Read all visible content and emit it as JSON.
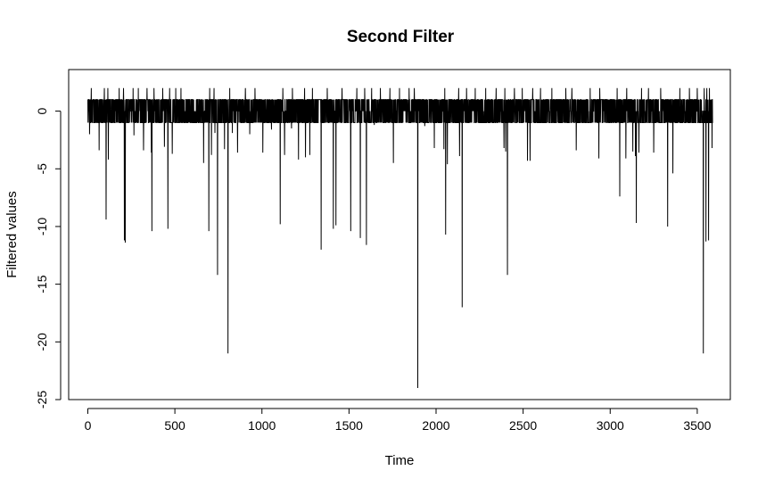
{
  "chart_data": {
    "type": "line",
    "title": "Second Filter",
    "xlabel": "Time",
    "ylabel": "Filtered values",
    "xlim": [
      -110,
      3690
    ],
    "ylim": [
      -25,
      3.6
    ],
    "x_ticks": [
      0,
      500,
      1000,
      1500,
      2000,
      2500,
      3000,
      3500
    ],
    "y_ticks": [
      0,
      -5,
      -10,
      -15,
      -20,
      -25
    ],
    "grid": false,
    "legend": "none",
    "series": [
      {
        "noise_levels": [
          -1,
          0,
          1
        ],
        "x_range": [
          0,
          3590
        ],
        "max_upward_spike": {
          "x": 1340,
          "y": 3
        },
        "max_upward_spike_level": 2,
        "upward_spikes_x": [
          20,
          95,
          115,
          180,
          205,
          260,
          290,
          340,
          380,
          430,
          470,
          505,
          535,
          665,
          700,
          725,
          785,
          815,
          860,
          905,
          960,
          1055,
          1120,
          1175,
          1245,
          1290,
          1375,
          1410,
          1460,
          1545,
          1590,
          1630,
          1680,
          1735,
          1790,
          1845,
          1875,
          1935,
          1990,
          2050,
          2130,
          2175,
          2225,
          2285,
          2345,
          2395,
          2450,
          2495,
          2555,
          2600,
          2665,
          2745,
          2780,
          2885,
          2940,
          3040,
          3095,
          3180,
          3220,
          3290,
          3400,
          3455,
          3500,
          3540,
          3555,
          3570
        ],
        "downward_spikes": [
          {
            "x": 10,
            "y": -2
          },
          {
            "x": 65,
            "y": -3.4
          },
          {
            "x": 105,
            "y": -9.4
          },
          {
            "x": 118,
            "y": -4.2
          },
          {
            "x": 210,
            "y": -11.2
          },
          {
            "x": 215,
            "y": -11.4
          },
          {
            "x": 265,
            "y": -2.1
          },
          {
            "x": 320,
            "y": -3.4
          },
          {
            "x": 365,
            "y": -3.6
          },
          {
            "x": 368,
            "y": -10.4
          },
          {
            "x": 440,
            "y": -3.1
          },
          {
            "x": 460,
            "y": -10.2
          },
          {
            "x": 485,
            "y": -3.7
          },
          {
            "x": 665,
            "y": -4.5
          },
          {
            "x": 695,
            "y": -10.4
          },
          {
            "x": 710,
            "y": -3.8
          },
          {
            "x": 730,
            "y": -1.9
          },
          {
            "x": 745,
            "y": -14.2
          },
          {
            "x": 785,
            "y": -3.3
          },
          {
            "x": 805,
            "y": -21
          },
          {
            "x": 830,
            "y": -1.9
          },
          {
            "x": 860,
            "y": -3.6
          },
          {
            "x": 930,
            "y": -2
          },
          {
            "x": 1005,
            "y": -3.6
          },
          {
            "x": 1055,
            "y": -1.6
          },
          {
            "x": 1105,
            "y": -9.8
          },
          {
            "x": 1130,
            "y": -3.8
          },
          {
            "x": 1170,
            "y": -1.5
          },
          {
            "x": 1210,
            "y": -4.2
          },
          {
            "x": 1250,
            "y": -4
          },
          {
            "x": 1275,
            "y": -3.8
          },
          {
            "x": 1340,
            "y": -12
          },
          {
            "x": 1410,
            "y": -10.2
          },
          {
            "x": 1425,
            "y": -9.9
          },
          {
            "x": 1510,
            "y": -10.4
          },
          {
            "x": 1565,
            "y": -11
          },
          {
            "x": 1600,
            "y": -11.6
          },
          {
            "x": 1645,
            "y": -1.2
          },
          {
            "x": 1755,
            "y": -4.5
          },
          {
            "x": 1895,
            "y": -24
          },
          {
            "x": 1935,
            "y": -1.3
          },
          {
            "x": 1990,
            "y": -3.2
          },
          {
            "x": 2045,
            "y": -3.3
          },
          {
            "x": 2055,
            "y": -10.7
          },
          {
            "x": 2065,
            "y": -4.6
          },
          {
            "x": 2135,
            "y": -3.9
          },
          {
            "x": 2150,
            "y": -17
          },
          {
            "x": 2390,
            "y": -3.2
          },
          {
            "x": 2400,
            "y": -3.5
          },
          {
            "x": 2410,
            "y": -14.2
          },
          {
            "x": 2525,
            "y": -4.3
          },
          {
            "x": 2540,
            "y": -4.3
          },
          {
            "x": 2805,
            "y": -3.4
          },
          {
            "x": 2935,
            "y": -4.1
          },
          {
            "x": 3055,
            "y": -7.4
          },
          {
            "x": 3090,
            "y": -4.1
          },
          {
            "x": 3130,
            "y": -3.5
          },
          {
            "x": 3145,
            "y": -3.9
          },
          {
            "x": 3150,
            "y": -9.7
          },
          {
            "x": 3165,
            "y": -3.6
          },
          {
            "x": 3250,
            "y": -3.6
          },
          {
            "x": 3330,
            "y": -10
          },
          {
            "x": 3360,
            "y": -5.4
          },
          {
            "x": 3535,
            "y": -21
          },
          {
            "x": 3550,
            "y": -11.3
          },
          {
            "x": 3565,
            "y": -11.2
          },
          {
            "x": 3585,
            "y": -3.2
          }
        ]
      }
    ]
  }
}
